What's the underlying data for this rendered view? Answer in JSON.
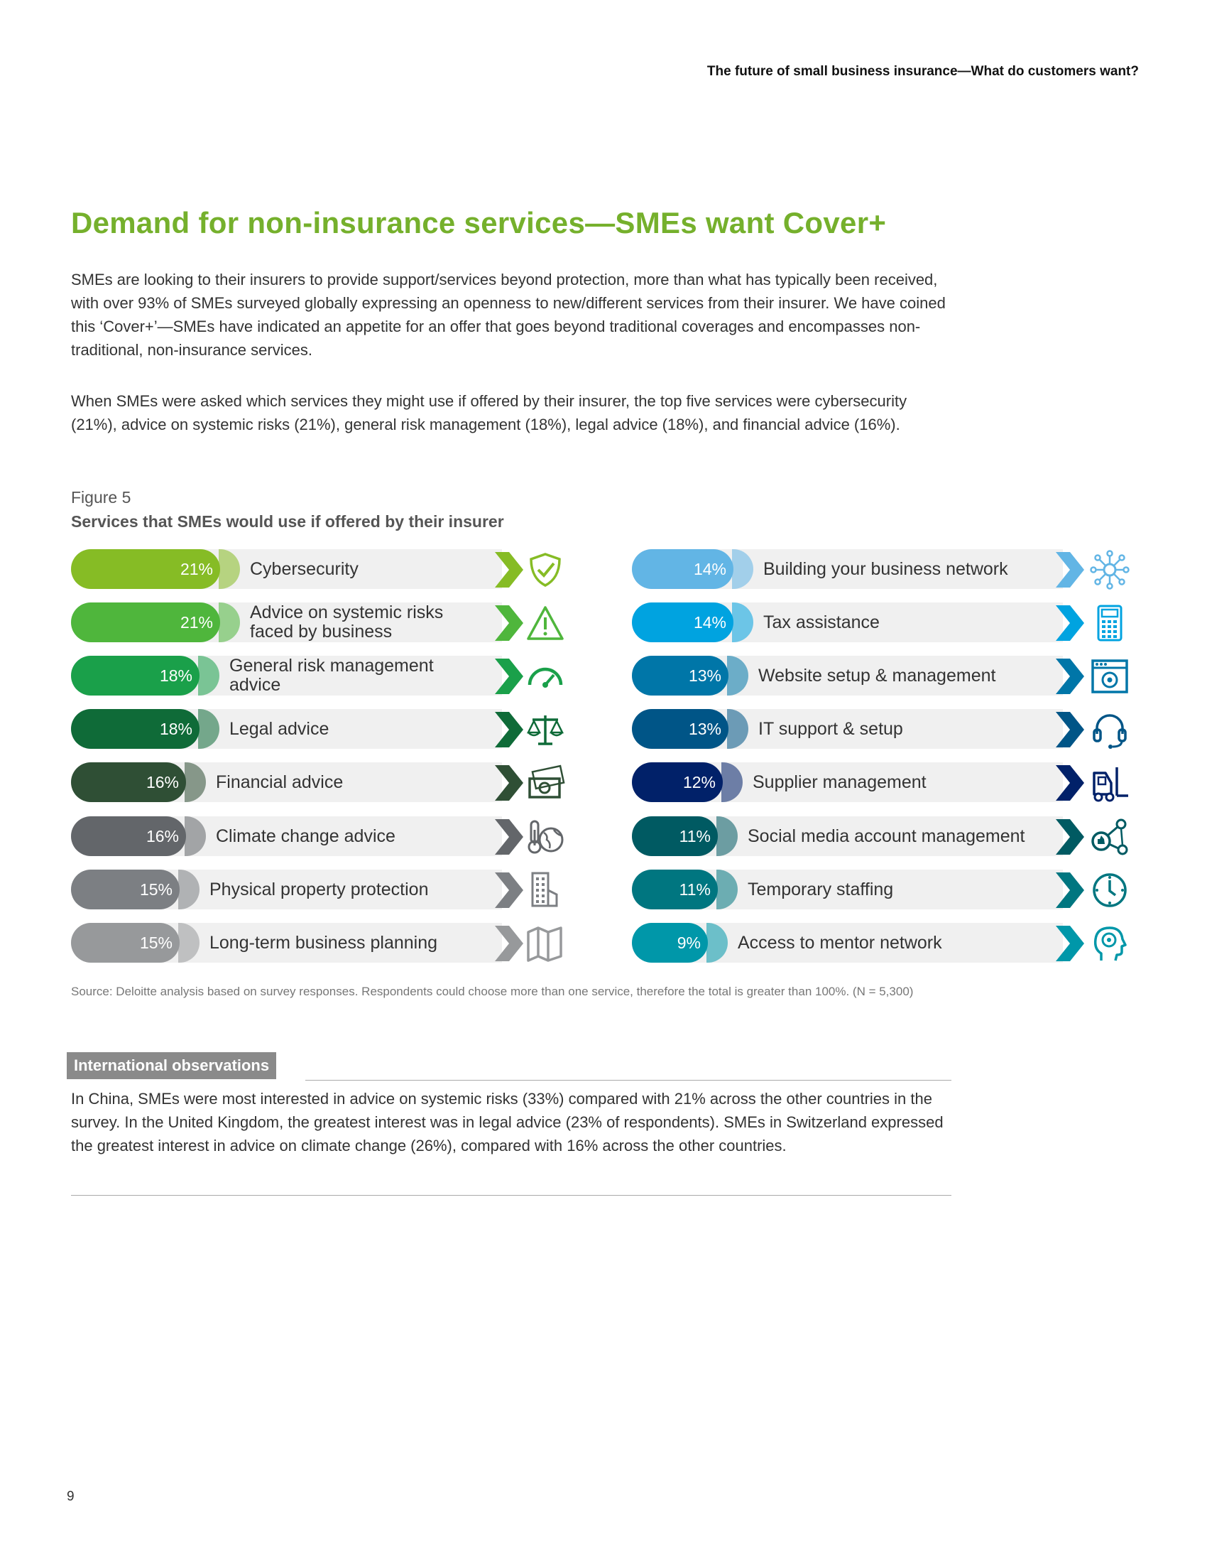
{
  "header": {
    "title": "The future of small business insurance—What do customers want?"
  },
  "main_title": "Demand for non-insurance services—SMEs want Cover+",
  "paragraphs": [
    "SMEs are looking to their insurers to provide support/services beyond protection, more than what has typically been received, with over 93% of SMEs surveyed globally expressing an openness to new/different services from their insurer. We have coined this ‘Cover+’—SMEs have indicated an appetite for an offer that goes beyond traditional coverages and encompasses non-traditional, non-insurance services.",
    "When SMEs were asked which services they might use if offered by their insurer, the top five services were cybersecurity (21%), advice on systemic risks (21%), general risk management (18%), legal advice (18%), and financial advice (16%)."
  ],
  "figure": {
    "label": "Figure 5",
    "title": "Services that SMEs would use if offered by their insurer"
  },
  "chart_data": {
    "type": "bar",
    "title": "Services that SMEs would use if offered by their insurer",
    "unit": "%",
    "left_column": [
      {
        "label": "Cybersecurity",
        "value": 21,
        "pct": "21%",
        "color": "#86bc25",
        "icon": "shield-icon"
      },
      {
        "label": "Advice on systemic risks faced by business",
        "value": 21,
        "pct": "21%",
        "color": "#4fb63c",
        "icon": "warning-icon"
      },
      {
        "label": "General risk management advice",
        "value": 18,
        "pct": "18%",
        "color": "#1aa04a",
        "icon": "gauge-icon"
      },
      {
        "label": "Legal advice",
        "value": 18,
        "pct": "18%",
        "color": "#0f6b38",
        "icon": "scales-icon"
      },
      {
        "label": "Financial advice",
        "value": 16,
        "pct": "16%",
        "color": "#2f4f35",
        "icon": "money-icon"
      },
      {
        "label": "Climate change advice",
        "value": 16,
        "pct": "16%",
        "color": "#63666a",
        "icon": "climate-icon"
      },
      {
        "label": "Physical property protection",
        "value": 15,
        "pct": "15%",
        "color": "#7c7f83",
        "icon": "building-icon"
      },
      {
        "label": "Long-term business planning",
        "value": 15,
        "pct": "15%",
        "color": "#97999b",
        "icon": "map-icon"
      }
    ],
    "right_column": [
      {
        "label": "Building your business network",
        "value": 14,
        "pct": "14%",
        "color": "#62b5e5",
        "icon": "network-icon"
      },
      {
        "label": "Tax assistance",
        "value": 14,
        "pct": "14%",
        "color": "#00a3e0",
        "icon": "calculator-icon"
      },
      {
        "label": "Website setup & management",
        "value": 13,
        "pct": "13%",
        "color": "#0076a8",
        "icon": "website-icon"
      },
      {
        "label": "IT support & setup",
        "value": 13,
        "pct": "13%",
        "color": "#005587",
        "icon": "headset-icon"
      },
      {
        "label": "Supplier management",
        "value": 12,
        "pct": "12%",
        "color": "#012169",
        "icon": "forklift-icon"
      },
      {
        "label": "Social media account management",
        "value": 11,
        "pct": "11%",
        "color": "#005a62",
        "icon": "social-icon"
      },
      {
        "label": "Temporary staffing",
        "value": 11,
        "pct": "11%",
        "color": "#007680",
        "icon": "clock-icon"
      },
      {
        "label": "Access to mentor network",
        "value": 9,
        "pct": "9%",
        "color": "#0097a9",
        "icon": "mentor-icon"
      }
    ]
  },
  "source": "Source: Deloitte analysis based on survey responses. Respondents could choose more than one service, therefore the total is greater than 100%. (N = 5,300)",
  "international": {
    "header": "International observations",
    "text": "In China, SMEs were most interested in advice on systemic risks (33%) compared with 21% across the other countries in the survey. In the United Kingdom, the greatest interest was in legal advice (23% of respondents). SMEs in Switzerland expressed the greatest interest in advice on climate change (26%), compared with 16% across the other countries."
  },
  "page_number": "9"
}
